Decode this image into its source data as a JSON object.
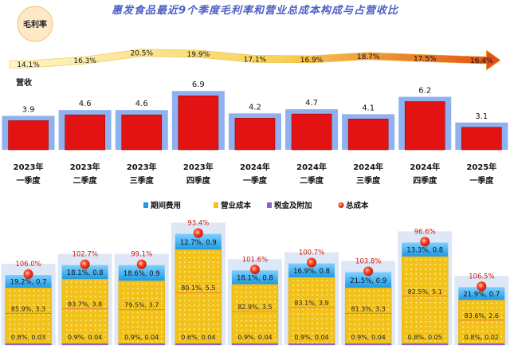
{
  "title": "惠发食品最近9个季度毛利率和营业总成本构成与占营收比",
  "colors": {
    "revenue_bar": "#e31313",
    "revenue_bg": "#8fb1f0",
    "margin_arrow_start": "#fff6c8",
    "margin_arrow_end": "#e34b12",
    "total_cost_dot": "#ff3b1f",
    "period_expense": "#1e9ae5",
    "operating_cost": "#f2c21a",
    "tax": "#8a63d2",
    "cost_bg": "#dde7f6",
    "title": "#4a5fc4"
  },
  "chart_data": [
    {
      "type": "line",
      "title": "毛利率",
      "categories": [
        "2023年一季度",
        "2023年二季度",
        "2023年三季度",
        "2023年四季度",
        "2024年一季度",
        "2024年二季度",
        "2024年三季度",
        "2024年四季度",
        "2025年一季度"
      ],
      "values": [
        14.1,
        16.3,
        20.5,
        19.9,
        17.1,
        16.9,
        18.7,
        17.5,
        16.4
      ],
      "value_labels": [
        "14.1%",
        "16.3%",
        "20.5%",
        "19.9%",
        "17.1%",
        "16.9%",
        "18.7%",
        "17.5%",
        "16.4%"
      ]
    },
    {
      "type": "bar",
      "title": "营收",
      "categories": [
        "2023年一季度",
        "2023年二季度",
        "2023年三季度",
        "2023年四季度",
        "2024年一季度",
        "2024年二季度",
        "2024年三季度",
        "2024年四季度",
        "2025年一季度"
      ],
      "year_labels": [
        "2023年",
        "2023年",
        "2023年",
        "2023年",
        "2024年",
        "2024年",
        "2024年",
        "2024年",
        "2025年"
      ],
      "quarter_labels": [
        "一季度",
        "二季度",
        "三季度",
        "四季度",
        "一季度",
        "二季度",
        "三季度",
        "四季度",
        "一季度"
      ],
      "values": [
        3.9,
        4.6,
        4.6,
        6.9,
        4.2,
        4.7,
        4.1,
        6.2,
        3.1
      ],
      "value_labels": [
        "3.9",
        "4.6",
        "4.6",
        "6.9",
        "4.2",
        "4.7",
        "4.1",
        "6.2",
        "3.1"
      ]
    },
    {
      "type": "bar",
      "legend": [
        "期间费用",
        "营业成本",
        "税金及附加",
        "总成本"
      ],
      "categories": [
        "2023年一季度",
        "2023年二季度",
        "2023年三季度",
        "2023年四季度",
        "2024年一季度",
        "2024年二季度",
        "2024年三季度",
        "2024年四季度",
        "2025年一季度"
      ],
      "series": [
        {
          "name": "期间费用",
          "pct": [
            19.2,
            18.1,
            18.6,
            12.7,
            18.1,
            16.9,
            21.5,
            13.3,
            21.9
          ],
          "values": [
            0.7,
            0.8,
            0.9,
            0.9,
            0.8,
            0.8,
            0.9,
            0.8,
            0.7
          ],
          "labels": [
            "19.2%, 0.7",
            "18.1%, 0.8",
            "18.6%, 0.9",
            "12.7%, 0.9",
            "18.1%, 0.8",
            "16.9%, 0.8",
            "21.5%, 0.9",
            "13.3%, 0.8",
            "21.9%, 0.7"
          ]
        },
        {
          "name": "营业成本",
          "pct": [
            85.9,
            83.7,
            79.5,
            80.1,
            82.9,
            83.1,
            81.3,
            82.5,
            83.6
          ],
          "values": [
            3.3,
            3.8,
            3.7,
            5.5,
            3.5,
            3.9,
            3.3,
            5.1,
            2.6
          ],
          "labels": [
            "85.9%, 3.3",
            "83.7%, 3.8",
            "79.5%, 3.7",
            "80.1%, 5.5",
            "82.9%, 3.5",
            "83.1%, 3.9",
            "81.3%, 3.3",
            "82.5%, 5.1",
            "83.6%, 2.6"
          ]
        },
        {
          "name": "税金及附加",
          "pct": [
            0.8,
            0.9,
            0.9,
            0.6,
            0.9,
            0.9,
            0.9,
            0.8,
            0.8
          ],
          "values": [
            0.03,
            0.04,
            0.04,
            0.04,
            0.04,
            0.04,
            0.04,
            0.05,
            0.02
          ],
          "labels": [
            "0.8%, 0.03",
            "0.9%, 0.04",
            "0.9%, 0.04",
            "0.6%, 0.04",
            "0.9%, 0.04",
            "0.9%, 0.04",
            "0.9%, 0.04",
            "0.8%, 0.05",
            "0.8%, 0.02"
          ]
        },
        {
          "name": "总成本",
          "pct": [
            106.0,
            102.7,
            99.1,
            93.4,
            101.6,
            100.7,
            103.8,
            96.6,
            106.5
          ],
          "labels": [
            "106.0%",
            "102.7%",
            "99.1%",
            "93.4%",
            "101.6%",
            "100.7%",
            "103.8%",
            "96.6%",
            "106.5%"
          ]
        }
      ]
    }
  ]
}
